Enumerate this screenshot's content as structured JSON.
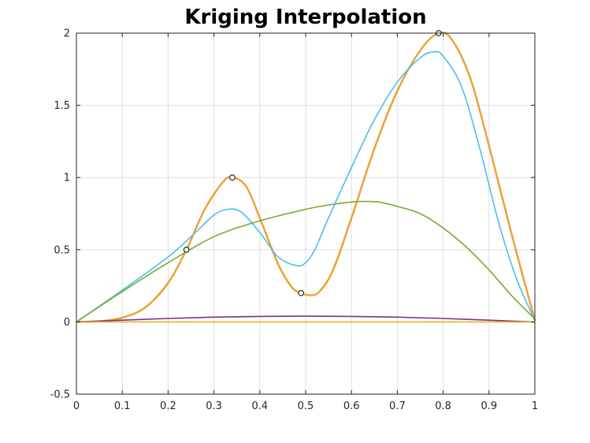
{
  "chart_data": {
    "type": "line",
    "title": "Kriging Interpolation",
    "xlabel": "",
    "ylabel": "",
    "xlim": [
      0,
      1
    ],
    "ylim": [
      -0.5,
      2
    ],
    "grid": true,
    "legend": "none",
    "xticks": [
      0,
      0.1,
      0.2,
      0.3,
      0.4,
      0.5,
      0.6,
      0.7,
      0.8,
      0.9,
      1
    ],
    "xtick_labels": [
      "0",
      "0.1",
      "0.2",
      "0.3",
      "0.4",
      "0.5",
      "0.6",
      "0.7",
      "0.8",
      "0.9",
      "1"
    ],
    "yticks": [
      -0.5,
      0,
      0.5,
      1,
      1.5,
      2
    ],
    "ytick_labels": [
      "-0.5",
      "0",
      "0.5",
      "1",
      "1.5",
      "2"
    ],
    "points": {
      "x": [
        0.24,
        0.34,
        0.49,
        0.79
      ],
      "y": [
        0.5,
        1.0,
        0.2,
        2.0
      ],
      "marker": "circle",
      "color": "#000000"
    },
    "series": [
      {
        "color": "#d95319",
        "x": [
          0,
          0.05,
          0.1,
          0.15,
          0.2,
          0.24,
          0.28,
          0.32,
          0.34,
          0.37,
          0.4,
          0.44,
          0.47,
          0.49,
          0.51,
          0.53,
          0.56,
          0.6,
          0.65,
          0.7,
          0.75,
          0.79,
          0.82,
          0.86,
          0.9,
          0.95,
          1
        ],
        "y": [
          0,
          0.004,
          0.03,
          0.1,
          0.27,
          0.5,
          0.78,
          0.97,
          1.0,
          0.94,
          0.72,
          0.4,
          0.24,
          0.2,
          0.185,
          0.21,
          0.36,
          0.72,
          1.2,
          1.6,
          1.88,
          2.0,
          1.95,
          1.68,
          1.22,
          0.6,
          0.01
        ]
      },
      {
        "color": "#edb120",
        "x": [
          0,
          0.05,
          0.1,
          0.15,
          0.2,
          0.24,
          0.28,
          0.32,
          0.34,
          0.37,
          0.4,
          0.44,
          0.47,
          0.49,
          0.51,
          0.53,
          0.56,
          0.6,
          0.65,
          0.7,
          0.75,
          0.79,
          0.82,
          0.86,
          0.9,
          0.95,
          1
        ],
        "y": [
          0,
          0.004,
          0.03,
          0.1,
          0.27,
          0.5,
          0.78,
          0.97,
          1.0,
          0.94,
          0.72,
          0.4,
          0.24,
          0.2,
          0.185,
          0.21,
          0.36,
          0.72,
          1.2,
          1.6,
          1.88,
          2.0,
          1.95,
          1.68,
          1.22,
          0.6,
          0.01
        ]
      },
      {
        "color": "#4dbeee",
        "x": [
          0,
          0.1,
          0.2,
          0.26,
          0.3,
          0.33,
          0.36,
          0.4,
          0.44,
          0.48,
          0.5,
          0.52,
          0.55,
          0.6,
          0.65,
          0.7,
          0.75,
          0.78,
          0.8,
          0.84,
          0.88,
          0.92,
          0.96,
          1
        ],
        "y": [
          0,
          0.22,
          0.45,
          0.62,
          0.74,
          0.78,
          0.76,
          0.62,
          0.45,
          0.39,
          0.41,
          0.5,
          0.72,
          1.07,
          1.4,
          1.66,
          1.83,
          1.87,
          1.84,
          1.63,
          1.2,
          0.7,
          0.3,
          0.01
        ]
      },
      {
        "color": "#77ac30",
        "x": [
          0,
          0.1,
          0.2,
          0.3,
          0.4,
          0.5,
          0.55,
          0.6,
          0.63,
          0.66,
          0.7,
          0.75,
          0.8,
          0.85,
          0.9,
          0.95,
          1
        ],
        "y": [
          0,
          0.21,
          0.41,
          0.59,
          0.7,
          0.78,
          0.81,
          0.83,
          0.834,
          0.83,
          0.8,
          0.75,
          0.65,
          0.52,
          0.36,
          0.18,
          0.02
        ]
      },
      {
        "color": "#7e2f8e",
        "x": [
          0,
          0.1,
          0.2,
          0.3,
          0.4,
          0.5,
          0.6,
          0.7,
          0.8,
          0.9,
          1
        ],
        "y": [
          0,
          0.012,
          0.024,
          0.033,
          0.038,
          0.04,
          0.038,
          0.033,
          0.024,
          0.012,
          0
        ]
      },
      {
        "color": "#edb120",
        "x": [
          0,
          1
        ],
        "y": [
          0,
          0
        ]
      }
    ]
  }
}
